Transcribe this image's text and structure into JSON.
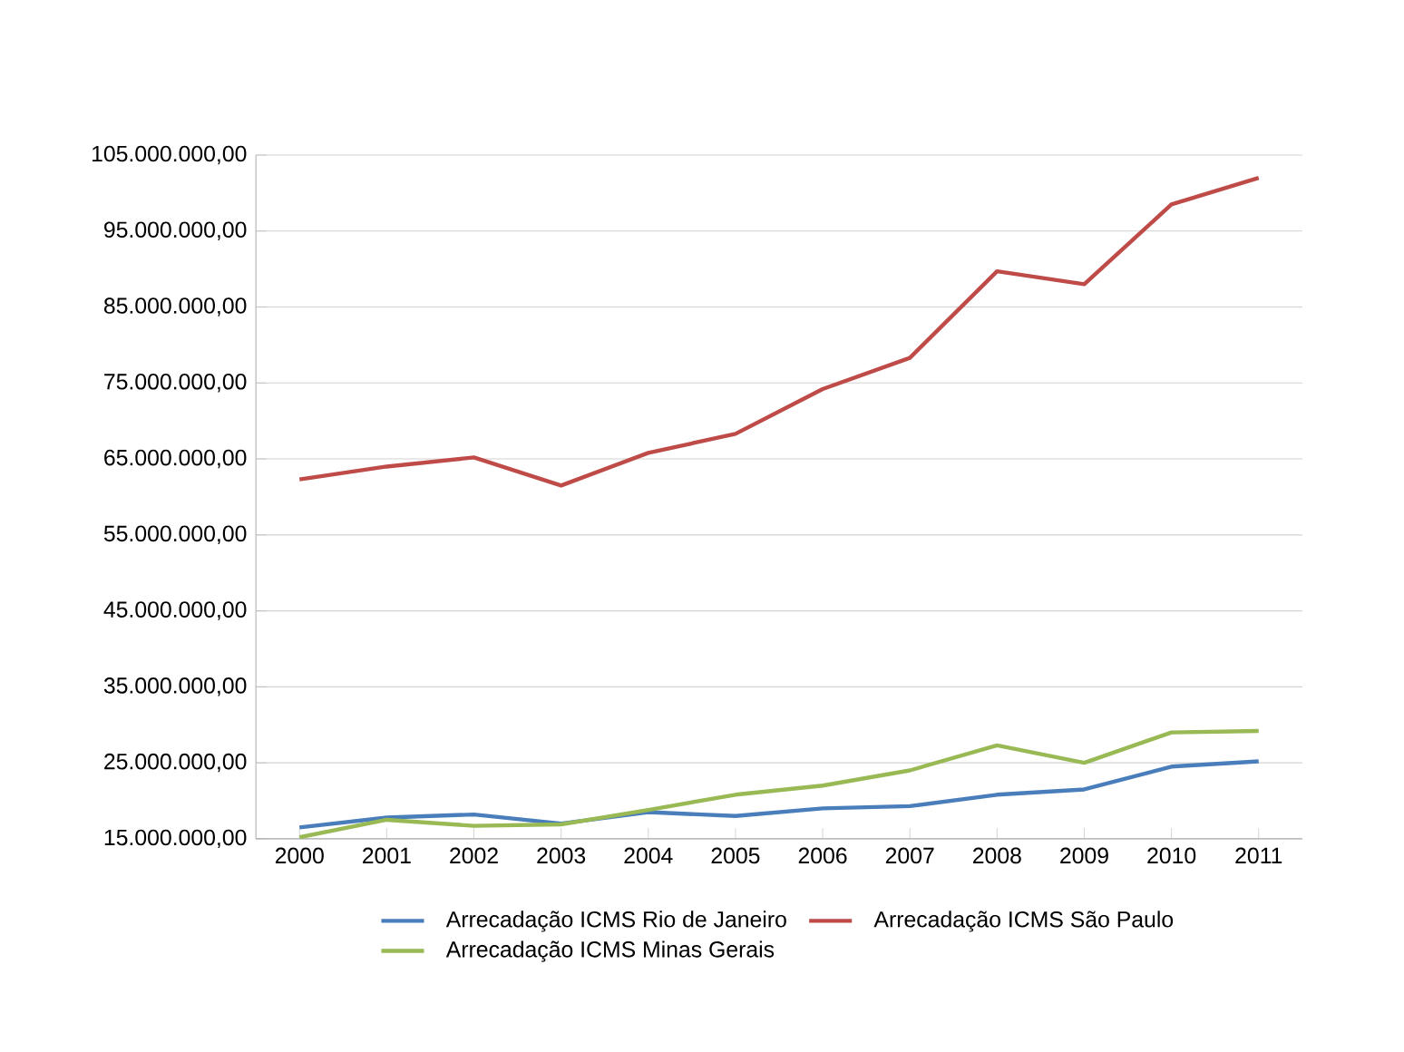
{
  "chart_data": {
    "type": "line",
    "categories": [
      "2000",
      "2001",
      "2002",
      "2003",
      "2004",
      "2005",
      "2006",
      "2007",
      "2008",
      "2009",
      "2010",
      "2011"
    ],
    "series": [
      {
        "name": "Arrecadação ICMS Rio de Janeiro",
        "color": "#4a7ebb",
        "values": [
          16500000,
          17800000,
          18200000,
          17000000,
          18500000,
          18000000,
          19000000,
          19300000,
          20800000,
          21500000,
          24500000,
          25200000
        ]
      },
      {
        "name": "Arrecadação ICMS São Paulo",
        "color": "#be4b48",
        "values": [
          62300000,
          64000000,
          65200000,
          61500000,
          65800000,
          68300000,
          74200000,
          78300000,
          89700000,
          88000000,
          98500000,
          102000000
        ]
      },
      {
        "name": "Arrecadação ICMS Minas Gerais",
        "color": "#98b954",
        "values": [
          15200000,
          17500000,
          16700000,
          16900000,
          18800000,
          20800000,
          22000000,
          24000000,
          27300000,
          25000000,
          29000000,
          29200000
        ]
      }
    ],
    "ylim": [
      15000000,
      105000000
    ],
    "yticks": [
      {
        "value": 15000000,
        "label": "15.000.000,00"
      },
      {
        "value": 25000000,
        "label": "25.000.000,00"
      },
      {
        "value": 35000000,
        "label": "35.000.000,00"
      },
      {
        "value": 45000000,
        "label": "45.000.000,00"
      },
      {
        "value": 55000000,
        "label": "55.000.000,00"
      },
      {
        "value": 65000000,
        "label": "65.000.000,00"
      },
      {
        "value": 75000000,
        "label": "75.000.000,00"
      },
      {
        "value": 85000000,
        "label": "85.000.000,00"
      },
      {
        "value": 95000000,
        "label": "95.000.000,00"
      },
      {
        "value": 105000000,
        "label": "105.000.000,00"
      }
    ],
    "grid": "y",
    "legend": "bottom",
    "marker": "none",
    "line_style": "solid"
  }
}
